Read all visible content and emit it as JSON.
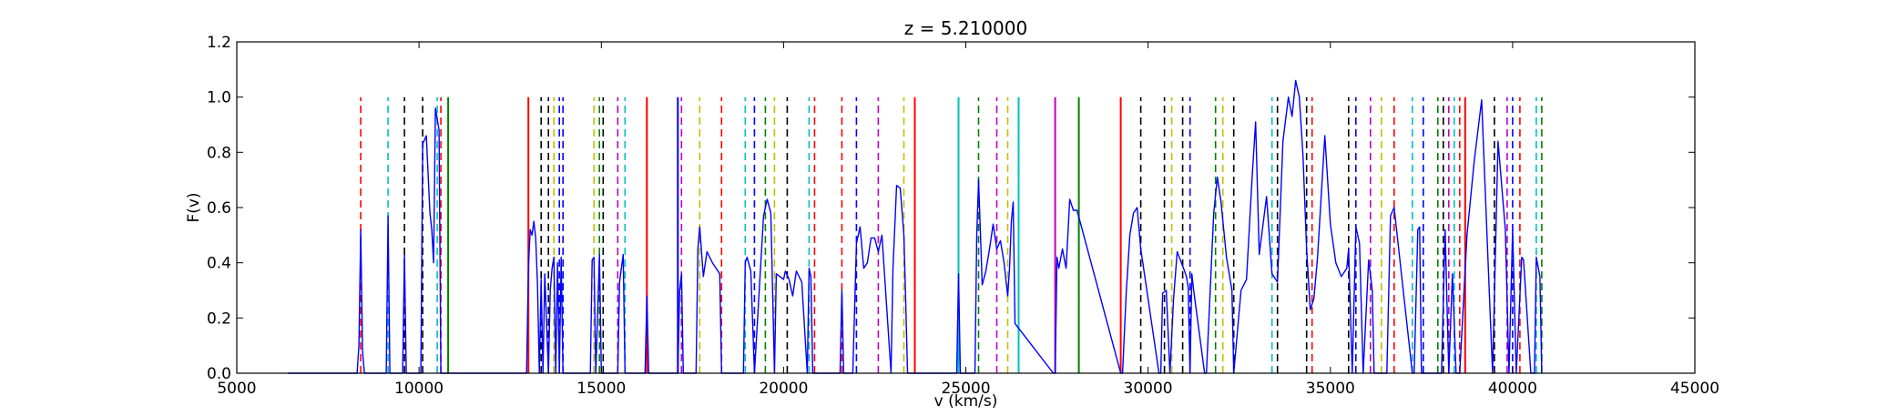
{
  "chart_data": {
    "type": "line",
    "title": "z = 5.210000",
    "xlabel": "v (km/s)",
    "ylabel": "F(v)",
    "xlim": [
      5000,
      45000
    ],
    "ylim": [
      0.0,
      1.2
    ],
    "xticks": [
      5000,
      10000,
      15000,
      20000,
      25000,
      30000,
      35000,
      40000,
      45000
    ],
    "xtick_labels": [
      "5000",
      "10000",
      "15000",
      "20000",
      "25000",
      "30000",
      "35000",
      "40000",
      "45000"
    ],
    "yticks": [
      0.0,
      0.2,
      0.4,
      0.6,
      0.8,
      1.0,
      1.2
    ],
    "ytick_labels": [
      "0.0",
      "0.2",
      "0.4",
      "0.6",
      "0.8",
      "1.0",
      "1.2"
    ],
    "grid": false,
    "legend": "none",
    "flux_series": {
      "color": "#0000ff",
      "x": [
        6400,
        8300,
        8350,
        8400,
        8450,
        8500,
        9100,
        9150,
        9200,
        9250,
        9550,
        9600,
        9650,
        9700,
        10050,
        10100,
        10200,
        10300,
        10350,
        10400,
        10450,
        10550,
        10600,
        10650,
        10700,
        10750,
        12950,
        13000,
        13050,
        13100,
        13150,
        13200,
        13250,
        13300,
        13350,
        13400,
        13450,
        13550,
        13600,
        13650,
        13700,
        13750,
        13800,
        13850,
        13900,
        13950,
        14000,
        14050,
        14700,
        14750,
        14800,
        14850,
        14950,
        15000,
        15050,
        15100,
        15450,
        15500,
        15600,
        15650,
        15700,
        16200,
        16250,
        16300,
        17100,
        17150,
        17200,
        17250,
        17600,
        17650,
        17700,
        17800,
        17900,
        18050,
        18200,
        18250,
        18300,
        18900,
        18950,
        19000,
        19100,
        19200,
        19450,
        19550,
        19650,
        19750,
        19800,
        20000,
        20050,
        20150,
        20250,
        20350,
        20500,
        20650,
        20700,
        20750,
        20800,
        20850,
        21550,
        21600,
        21650,
        21900,
        22000,
        22100,
        22200,
        22300,
        22400,
        22500,
        22600,
        22700,
        22950,
        23000,
        23100,
        23200,
        23300,
        23350,
        23400,
        24750,
        24800,
        24850,
        25250,
        25300,
        25350,
        25450,
        25550,
        25650,
        25750,
        25850,
        25950,
        26050,
        26150,
        26200,
        26250,
        26300,
        26350,
        27400,
        27450,
        27500,
        27550,
        27650,
        27750,
        27850,
        27950,
        28050,
        29250,
        29300,
        29400,
        29500,
        29600,
        29700,
        29800,
        30300,
        30350,
        30400,
        30500,
        30600,
        30700,
        30800,
        31000,
        31050,
        31100,
        31150,
        31200,
        31250,
        31550,
        31600,
        31800,
        31900,
        32000,
        32150,
        32300,
        32350,
        32550,
        32700,
        32850,
        32950,
        33050,
        33250,
        33400,
        33550,
        33700,
        33850,
        33950,
        34050,
        34150,
        34250,
        34350,
        34450,
        34550,
        34650,
        34850,
        35000,
        35150,
        35300,
        35450,
        35500,
        35600,
        35700,
        35800,
        35900,
        36050,
        36150,
        36200,
        36450,
        36550,
        36650,
        36750,
        37250,
        37300,
        37400,
        37450,
        37500,
        37550,
        37900,
        37950,
        38050,
        38150,
        38250,
        38350,
        38450,
        38550,
        38750,
        38950,
        39150,
        39300,
        39450,
        39600,
        39800,
        39900,
        40000,
        40100,
        40250,
        40300,
        40500,
        40600,
        40650,
        40750,
        40800
      ],
      "y": [
        0.0,
        0.0,
        0.1,
        0.52,
        0.08,
        0.0,
        0.0,
        0.57,
        0.0,
        0.0,
        0.0,
        0.43,
        0.0,
        0.0,
        0.0,
        0.83,
        0.86,
        0.58,
        0.52,
        0.4,
        0.96,
        0.88,
        0.0,
        0.0,
        0.0,
        0.0,
        0.0,
        0.38,
        0.52,
        0.5,
        0.55,
        0.49,
        0.32,
        0.0,
        0.34,
        0.0,
        0.36,
        0.0,
        0.3,
        0.38,
        0.42,
        0.0,
        0.4,
        0.0,
        0.42,
        0.0,
        0.0,
        0.0,
        0.0,
        0.41,
        0.42,
        0.0,
        0.43,
        0.0,
        0.0,
        0.0,
        0.0,
        0.33,
        0.43,
        0.0,
        0.0,
        0.0,
        0.28,
        0.0,
        0.0,
        0.3,
        0.36,
        0.0,
        0.0,
        0.45,
        0.53,
        0.35,
        0.44,
        0.4,
        0.37,
        0.36,
        0.0,
        0.0,
        0.4,
        0.42,
        0.37,
        0.0,
        0.57,
        0.63,
        0.58,
        0.0,
        0.36,
        0.34,
        0.37,
        0.34,
        0.28,
        0.37,
        0.33,
        0.0,
        0.38,
        0.35,
        0.0,
        0.0,
        0.0,
        0.3,
        0.0,
        0.0,
        0.47,
        0.53,
        0.38,
        0.4,
        0.49,
        0.49,
        0.44,
        0.5,
        0.0,
        0.38,
        0.68,
        0.67,
        0.5,
        0.26,
        0.0,
        0.0,
        0.36,
        0.0,
        0.0,
        0.5,
        0.7,
        0.32,
        0.37,
        0.45,
        0.54,
        0.45,
        0.48,
        0.4,
        0.28,
        0.38,
        0.55,
        0.62,
        0.18,
        0.0,
        0.0,
        0.42,
        0.38,
        0.45,
        0.38,
        0.63,
        0.59,
        0.59,
        0.0,
        0.0,
        0.29,
        0.5,
        0.58,
        0.6,
        0.45,
        0.0,
        0.0,
        0.29,
        0.3,
        0.0,
        0.27,
        0.44,
        0.37,
        0.35,
        0.31,
        0.0,
        0.36,
        0.3,
        0.0,
        0.0,
        0.58,
        0.71,
        0.62,
        0.42,
        0.3,
        0.0,
        0.3,
        0.34,
        0.7,
        0.91,
        0.43,
        0.64,
        0.36,
        0.33,
        0.84,
        1.0,
        0.93,
        1.06,
        1.0,
        0.79,
        0.45,
        0.23,
        0.27,
        0.42,
        0.86,
        0.54,
        0.4,
        0.35,
        0.38,
        0.45,
        0.0,
        0.53,
        0.47,
        0.0,
        0.41,
        0.3,
        0.0,
        0.0,
        0.0,
        0.57,
        0.6,
        0.0,
        0.0,
        0.52,
        0.53,
        0.0,
        0.0,
        0.0,
        0.0,
        0.0,
        0.52,
        0.0,
        0.36,
        0.0,
        0.0,
        0.5,
        0.77,
        0.99,
        0.49,
        0.0,
        0.84,
        0.52,
        0.0,
        0.52,
        0.0,
        0.42,
        0.41,
        0.0,
        0.0,
        0.42,
        0.35,
        0.0
      ]
    },
    "absorber_lines": [
      {
        "v": 8400,
        "color": "#ff0000",
        "style": "dashed"
      },
      {
        "v": 9150,
        "color": "#00bfbf",
        "style": "dashed"
      },
      {
        "v": 9600,
        "color": "#000000",
        "style": "dashed"
      },
      {
        "v": 10100,
        "color": "#000000",
        "style": "dashed"
      },
      {
        "v": 10500,
        "color": "#00bfbf",
        "style": "dashed"
      },
      {
        "v": 10600,
        "color": "#ff0000",
        "style": "dashed"
      },
      {
        "v": 10800,
        "color": "#008000",
        "style": "solid"
      },
      {
        "v": 13000,
        "color": "#ff0000",
        "style": "solid"
      },
      {
        "v": 13350,
        "color": "#000000",
        "style": "dashed"
      },
      {
        "v": 13550,
        "color": "#000000",
        "style": "dashed"
      },
      {
        "v": 13700,
        "color": "#bfbf00",
        "style": "dashed"
      },
      {
        "v": 13850,
        "color": "#0000ff",
        "style": "dashed"
      },
      {
        "v": 13950,
        "color": "#0000ff",
        "style": "dashed"
      },
      {
        "v": 14800,
        "color": "#bfbf00",
        "style": "dashed"
      },
      {
        "v": 14950,
        "color": "#008000",
        "style": "dashed"
      },
      {
        "v": 15050,
        "color": "#000000",
        "style": "dashed"
      },
      {
        "v": 15450,
        "color": "#bf00bf",
        "style": "dashed"
      },
      {
        "v": 15650,
        "color": "#00bfbf",
        "style": "dashed"
      },
      {
        "v": 16250,
        "color": "#ff0000",
        "style": "solid"
      },
      {
        "v": 17100,
        "color": "#0000ff",
        "style": "solid"
      },
      {
        "v": 17200,
        "color": "#bf00bf",
        "style": "dashed"
      },
      {
        "v": 17700,
        "color": "#bfbf00",
        "style": "dashed"
      },
      {
        "v": 18300,
        "color": "#ff0000",
        "style": "dashed"
      },
      {
        "v": 18950,
        "color": "#00bfbf",
        "style": "dashed"
      },
      {
        "v": 19200,
        "color": "#0000ff",
        "style": "dashed"
      },
      {
        "v": 19500,
        "color": "#008000",
        "style": "dashed"
      },
      {
        "v": 19750,
        "color": "#bfbf00",
        "style": "dashed"
      },
      {
        "v": 20100,
        "color": "#000000",
        "style": "dashed"
      },
      {
        "v": 20700,
        "color": "#00bfbf",
        "style": "dashed"
      },
      {
        "v": 20850,
        "color": "#ff0000",
        "style": "dashed"
      },
      {
        "v": 21600,
        "color": "#ff0000",
        "style": "dashed"
      },
      {
        "v": 22000,
        "color": "#0000ff",
        "style": "dashed"
      },
      {
        "v": 22600,
        "color": "#bf00bf",
        "style": "dashed"
      },
      {
        "v": 23300,
        "color": "#bfbf00",
        "style": "dashed"
      },
      {
        "v": 23600,
        "color": "#ff0000",
        "style": "solid"
      },
      {
        "v": 24800,
        "color": "#00bfbf",
        "style": "solid"
      },
      {
        "v": 25350,
        "color": "#008000",
        "style": "dashed"
      },
      {
        "v": 25850,
        "color": "#bf00bf",
        "style": "dashed"
      },
      {
        "v": 26150,
        "color": "#bfbf00",
        "style": "dashed"
      },
      {
        "v": 26450,
        "color": "#00bfbf",
        "style": "solid"
      },
      {
        "v": 27450,
        "color": "#bf00bf",
        "style": "solid"
      },
      {
        "v": 28100,
        "color": "#008000",
        "style": "solid"
      },
      {
        "v": 29250,
        "color": "#ff0000",
        "style": "solid"
      },
      {
        "v": 29800,
        "color": "#000000",
        "style": "dashed"
      },
      {
        "v": 30450,
        "color": "#000000",
        "style": "dashed"
      },
      {
        "v": 30650,
        "color": "#bfbf00",
        "style": "dashed"
      },
      {
        "v": 30950,
        "color": "#000000",
        "style": "dashed"
      },
      {
        "v": 31150,
        "color": "#0000ff",
        "style": "dashed"
      },
      {
        "v": 31850,
        "color": "#008000",
        "style": "dashed"
      },
      {
        "v": 32050,
        "color": "#bfbf00",
        "style": "dashed"
      },
      {
        "v": 32350,
        "color": "#000000",
        "style": "dashed"
      },
      {
        "v": 33400,
        "color": "#00bfbf",
        "style": "dashed"
      },
      {
        "v": 33550,
        "color": "#000000",
        "style": "dashed"
      },
      {
        "v": 34350,
        "color": "#000000",
        "style": "dashed"
      },
      {
        "v": 34500,
        "color": "#ff0000",
        "style": "dashed"
      },
      {
        "v": 35500,
        "color": "#000000",
        "style": "dashed"
      },
      {
        "v": 35700,
        "color": "#0000ff",
        "style": "dashed"
      },
      {
        "v": 36100,
        "color": "#bf00bf",
        "style": "dashed"
      },
      {
        "v": 36400,
        "color": "#bfbf00",
        "style": "dashed"
      },
      {
        "v": 36750,
        "color": "#ff0000",
        "style": "dashed"
      },
      {
        "v": 37250,
        "color": "#00bfbf",
        "style": "dashed"
      },
      {
        "v": 37550,
        "color": "#0000ff",
        "style": "dashed"
      },
      {
        "v": 37950,
        "color": "#008000",
        "style": "dashed"
      },
      {
        "v": 38100,
        "color": "#000000",
        "style": "dashed"
      },
      {
        "v": 38250,
        "color": "#bf00bf",
        "style": "dashed"
      },
      {
        "v": 38400,
        "color": "#00bfbf",
        "style": "dashed"
      },
      {
        "v": 38550,
        "color": "#ff0000",
        "style": "dashed"
      },
      {
        "v": 38700,
        "color": "#ff0000",
        "style": "solid"
      },
      {
        "v": 39500,
        "color": "#000000",
        "style": "dashed"
      },
      {
        "v": 39850,
        "color": "#bf00bf",
        "style": "dashed"
      },
      {
        "v": 40000,
        "color": "#0000ff",
        "style": "dashed"
      },
      {
        "v": 40200,
        "color": "#ff0000",
        "style": "dashed"
      },
      {
        "v": 40650,
        "color": "#00bfbf",
        "style": "dashed"
      },
      {
        "v": 40800,
        "color": "#008000",
        "style": "dashed"
      }
    ]
  }
}
